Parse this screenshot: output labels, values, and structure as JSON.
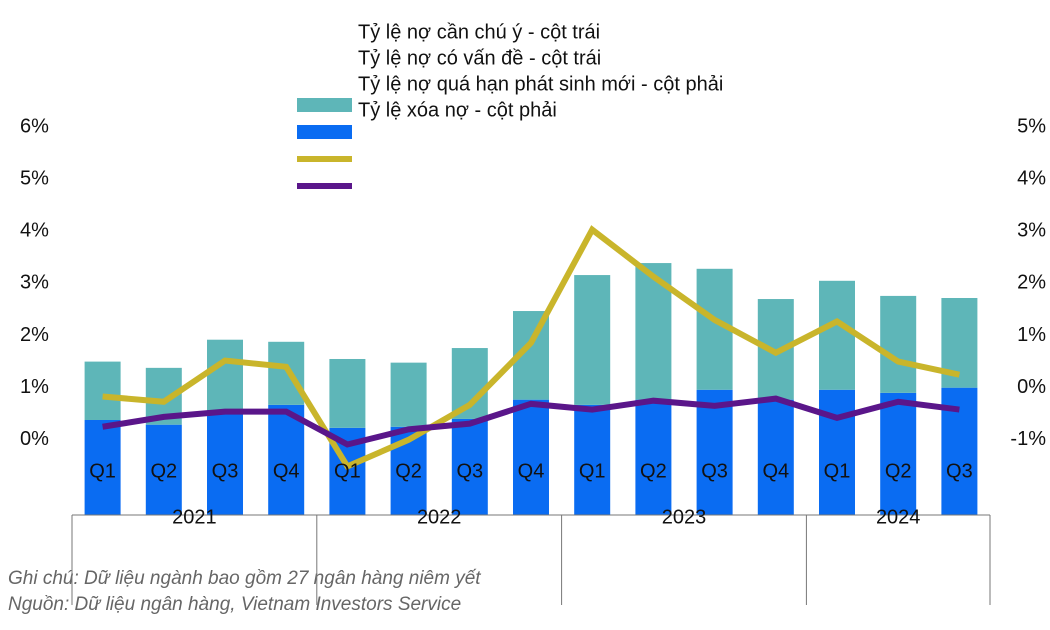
{
  "chart_data": {
    "type": "combo",
    "category_groups": [
      {
        "name": "2021",
        "categories": [
          "Q1",
          "Q2",
          "Q3",
          "Q4"
        ]
      },
      {
        "name": "2022",
        "categories": [
          "Q1",
          "Q2",
          "Q3",
          "Q4"
        ]
      },
      {
        "name": "2023",
        "categories": [
          "Q1",
          "Q2",
          "Q3",
          "Q4"
        ]
      },
      {
        "name": "2024",
        "categories": [
          "Q1",
          "Q2",
          "Q3"
        ]
      }
    ],
    "series": [
      {
        "name": "Tỷ lệ nợ cần chú ý - cột trái",
        "type": "stacked_bar",
        "axis": "y",
        "color": "#5eb6b8",
        "values": [
          1.12,
          1.09,
          1.35,
          1.21,
          1.32,
          1.23,
          1.36,
          1.7,
          2.49,
          2.62,
          2.32,
          1.93,
          2.09,
          1.86,
          1.72
        ]
      },
      {
        "name": "Tỷ lệ nợ có vấn đề - cột trái",
        "type": "stacked_bar",
        "axis": "y",
        "color": "#0a6cf2",
        "values": [
          0.38,
          0.29,
          0.57,
          0.67,
          0.23,
          0.25,
          0.4,
          0.77,
          0.67,
          0.77,
          0.96,
          0.77,
          0.96,
          0.9,
          1.0
        ]
      },
      {
        "name": "Tỷ lệ nợ quá hạn phát sinh mới - cột phải",
        "type": "line",
        "axis": "y2",
        "color": "#c9b52b",
        "values": [
          -0.17,
          -0.27,
          0.52,
          0.4,
          -1.51,
          -1.0,
          -0.33,
          0.86,
          3.03,
          2.13,
          1.3,
          0.67,
          1.27,
          0.5,
          0.25
        ]
      },
      {
        "name": "Tỷ lệ xóa nợ - cột phải",
        "type": "line",
        "axis": "y2",
        "color": "#5a168a",
        "values": [
          -0.75,
          -0.56,
          -0.46,
          -0.46,
          -1.09,
          -0.8,
          -0.69,
          -0.31,
          -0.42,
          -0.25,
          -0.35,
          -0.21,
          -0.58,
          -0.27,
          -0.42
        ]
      }
    ],
    "ylim": [
      -1.5,
      6
    ],
    "yticks": [
      {
        "value": 0,
        "label": "0%"
      },
      {
        "value": 1,
        "label": "1%"
      },
      {
        "value": 2,
        "label": "2%"
      },
      {
        "value": 3,
        "label": "3%"
      },
      {
        "value": 4,
        "label": "4%"
      },
      {
        "value": 5,
        "label": "5%"
      },
      {
        "value": 6,
        "label": "6%"
      }
    ],
    "y2lim": [
      -2.5,
      5
    ],
    "y2ticks": [
      {
        "value": -1,
        "label": "-1%"
      },
      {
        "value": 0,
        "label": "0%"
      },
      {
        "value": 1,
        "label": "1%"
      },
      {
        "value": 2,
        "label": "2%"
      },
      {
        "value": 3,
        "label": "3%"
      },
      {
        "value": 4,
        "label": "4%"
      },
      {
        "value": 5,
        "label": "5%"
      }
    ],
    "notes": [
      "Ghi chú: Dữ liệu ngành bao gồm 27 ngân hàng niêm yết",
      "Nguồn: Dữ liệu ngân hàng, Vietnam Investors Service"
    ]
  }
}
